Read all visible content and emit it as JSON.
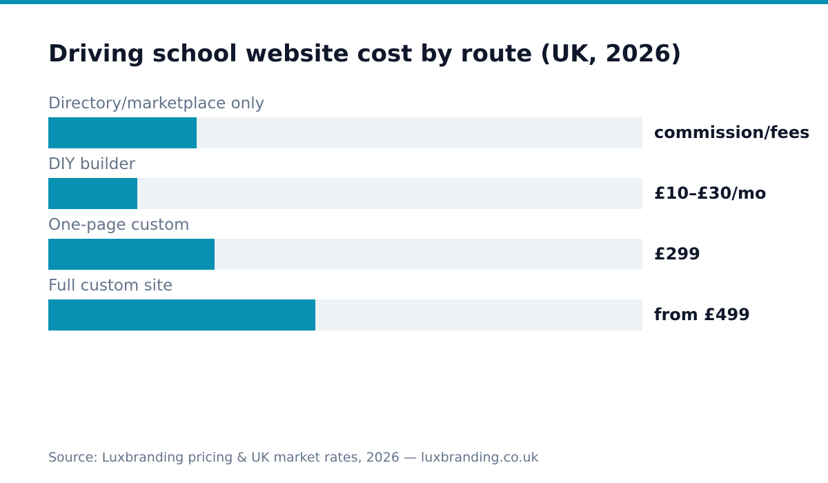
{
  "colors": {
    "accent": "#0891b2",
    "track": "#edf2f7",
    "title": "#0f172a",
    "muted": "#64748b"
  },
  "chart_data": {
    "type": "bar",
    "orientation": "horizontal",
    "title": "Driving school website cost by route (UK, 2026)",
    "categories": [
      "Directory/marketplace only",
      "DIY builder",
      "One-page custom",
      "Full custom site"
    ],
    "values": [
      0.25,
      0.15,
      0.28,
      0.45
    ],
    "value_scale": "relative bar length (fraction of track), no numeric axis shown",
    "data_labels": [
      "commission/fees",
      "£10–£30/mo",
      "£299",
      "from £499"
    ],
    "xlabel": "",
    "ylabel": "",
    "grid": false,
    "legend": "none",
    "source": "Source: Luxbranding pricing & UK market rates, 2026 — luxbranding.co.uk"
  }
}
